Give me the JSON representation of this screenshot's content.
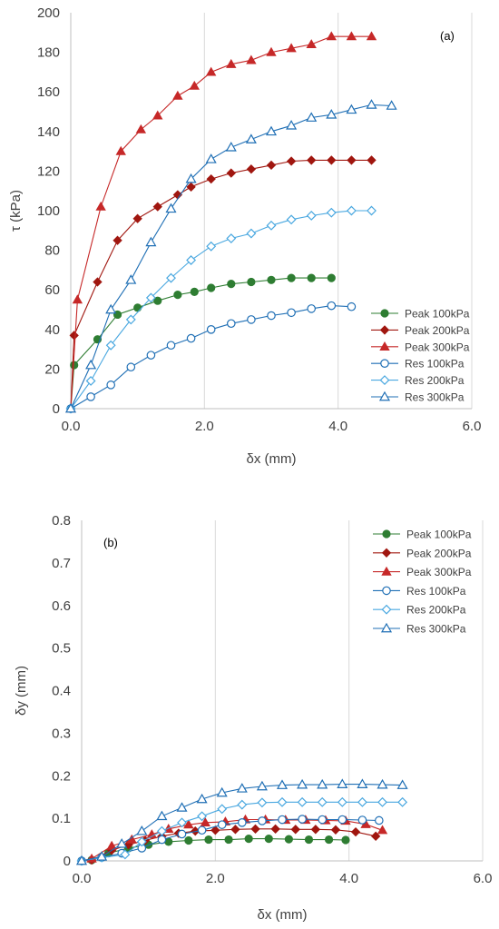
{
  "chart_data": [
    {
      "type": "line",
      "panel_label": "(a)",
      "xlabel": "δx (mm)",
      "ylabel": "τ (kPa)",
      "xlim": [
        0,
        6
      ],
      "ylim": [
        0,
        200
      ],
      "xticks": [
        0,
        2,
        4,
        6
      ],
      "xtick_labels": [
        "0.0",
        "2.0",
        "4.0",
        "6.0"
      ],
      "yticks": [
        0,
        20,
        40,
        60,
        80,
        100,
        120,
        140,
        160,
        180,
        200
      ],
      "ytick_labels": [
        "0",
        "20",
        "40",
        "60",
        "80",
        "100",
        "120",
        "140",
        "160",
        "180",
        "200"
      ],
      "grid": "vertical",
      "legend_position": "bottom-right",
      "series": [
        {
          "name": "Peak 100kPa",
          "color": "#2e7d32",
          "marker": "filled-circle",
          "x": [
            0,
            0.05,
            0.4,
            0.7,
            1.0,
            1.3,
            1.6,
            1.85,
            2.1,
            2.4,
            2.7,
            3.0,
            3.3,
            3.6,
            3.9
          ],
          "y": [
            0,
            22,
            35,
            47.5,
            51,
            54.5,
            57.5,
            59,
            61,
            63,
            64,
            65,
            66,
            66,
            66
          ]
        },
        {
          "name": "Peak 200kPa",
          "color": "#a0160f",
          "marker": "filled-diamond",
          "x": [
            0,
            0.05,
            0.4,
            0.7,
            1.0,
            1.3,
            1.6,
            1.8,
            2.1,
            2.4,
            2.7,
            3.0,
            3.3,
            3.6,
            3.9,
            4.2,
            4.5
          ],
          "y": [
            0,
            37,
            64,
            85,
            96,
            102,
            108,
            112,
            116,
            119,
            121,
            123,
            125,
            125.5,
            125.5,
            125.5,
            125.5
          ]
        },
        {
          "name": "Peak 300kPa",
          "color": "#c62828",
          "marker": "filled-triangle",
          "x": [
            0,
            0.1,
            0.45,
            0.75,
            1.05,
            1.3,
            1.6,
            1.85,
            2.1,
            2.4,
            2.7,
            3.0,
            3.3,
            3.6,
            3.9,
            4.2,
            4.5
          ],
          "y": [
            0,
            55,
            102,
            130,
            141,
            148,
            158,
            163,
            170,
            174,
            176,
            180,
            182,
            184,
            188,
            188,
            188
          ]
        },
        {
          "name": "Res 100kPa",
          "color": "#1f6fb5",
          "marker": "open-circle",
          "x": [
            0,
            0.3,
            0.6,
            0.9,
            1.2,
            1.5,
            1.8,
            2.1,
            2.4,
            2.7,
            3.0,
            3.3,
            3.6,
            3.9,
            4.2
          ],
          "y": [
            0,
            6,
            12,
            21,
            27,
            32,
            35.5,
            40,
            43,
            45,
            47,
            48.5,
            50.5,
            52,
            51.5
          ]
        },
        {
          "name": "Res 200kPa",
          "color": "#4aa8e0",
          "marker": "open-diamond",
          "x": [
            0,
            0.3,
            0.6,
            0.9,
            1.2,
            1.5,
            1.8,
            2.1,
            2.4,
            2.7,
            3.0,
            3.3,
            3.6,
            3.9,
            4.2,
            4.5
          ],
          "y": [
            0,
            14,
            32,
            45,
            56,
            66,
            75,
            82,
            86,
            88.5,
            92.5,
            95.5,
            97.5,
            99,
            100,
            100
          ]
        },
        {
          "name": "Res 300kPa",
          "color": "#1f6fb5",
          "marker": "open-triangle",
          "x": [
            0,
            0.3,
            0.6,
            0.9,
            1.2,
            1.5,
            1.8,
            2.1,
            2.4,
            2.7,
            3.0,
            3.3,
            3.6,
            3.9,
            4.2,
            4.5,
            4.8
          ],
          "y": [
            0,
            22,
            50,
            65,
            84,
            101,
            116,
            126,
            132,
            136,
            140,
            143,
            147,
            148.5,
            151,
            153.5,
            153
          ]
        }
      ]
    },
    {
      "type": "line",
      "panel_label": "(b)",
      "xlabel": "δx (mm)",
      "ylabel": "δy (mm)",
      "xlim": [
        0,
        6
      ],
      "ylim": [
        0,
        0.8
      ],
      "xticks": [
        0,
        2,
        4,
        6
      ],
      "xtick_labels": [
        "0.0",
        "2.0",
        "4.0",
        "6.0"
      ],
      "yticks": [
        0,
        0.1,
        0.2,
        0.3,
        0.4,
        0.5,
        0.6,
        0.7,
        0.8
      ],
      "ytick_labels": [
        "0",
        "0.1",
        "0.2",
        "0.3",
        "0.4",
        "0.5",
        "0.6",
        "0.7",
        "0.8"
      ],
      "grid": "vertical",
      "legend_position": "top-right",
      "series": [
        {
          "name": "Peak 100kPa",
          "color": "#2e7d32",
          "marker": "filled-circle",
          "x": [
            0,
            0.15,
            0.4,
            0.7,
            1.0,
            1.3,
            1.6,
            1.9,
            2.2,
            2.5,
            2.8,
            3.1,
            3.4,
            3.7,
            3.95
          ],
          "y": [
            0,
            0.002,
            0.018,
            0.03,
            0.038,
            0.045,
            0.048,
            0.05,
            0.05,
            0.052,
            0.052,
            0.051,
            0.05,
            0.05,
            0.049
          ]
        },
        {
          "name": "Peak 200kPa",
          "color": "#a0160f",
          "marker": "filled-diamond",
          "x": [
            0,
            0.15,
            0.45,
            0.7,
            0.95,
            1.2,
            1.45,
            1.7,
            2.0,
            2.3,
            2.6,
            2.9,
            3.2,
            3.5,
            3.8,
            4.1,
            4.4
          ],
          "y": [
            0,
            0.002,
            0.025,
            0.038,
            0.048,
            0.058,
            0.065,
            0.07,
            0.072,
            0.074,
            0.075,
            0.075,
            0.074,
            0.074,
            0.073,
            0.068,
            0.058
          ]
        },
        {
          "name": "Peak 300kPa",
          "color": "#c62828",
          "marker": "filled-triangle",
          "x": [
            0,
            0.15,
            0.45,
            0.75,
            1.05,
            1.3,
            1.6,
            1.85,
            2.15,
            2.45,
            2.75,
            3.05,
            3.35,
            3.65,
            3.95,
            4.25,
            4.5
          ],
          "y": [
            0,
            0.005,
            0.035,
            0.05,
            0.062,
            0.075,
            0.085,
            0.09,
            0.092,
            0.097,
            0.097,
            0.096,
            0.096,
            0.095,
            0.094,
            0.086,
            0.072
          ]
        },
        {
          "name": "Res 100kPa",
          "color": "#1f6fb5",
          "marker": "open-circle",
          "x": [
            0,
            0.3,
            0.6,
            0.9,
            1.2,
            1.5,
            1.8,
            2.1,
            2.4,
            2.7,
            3.0,
            3.3,
            3.6,
            3.9,
            4.2,
            4.45
          ],
          "y": [
            0,
            0.008,
            0.018,
            0.03,
            0.05,
            0.063,
            0.072,
            0.085,
            0.09,
            0.094,
            0.097,
            0.098,
            0.097,
            0.097,
            0.096,
            0.095
          ]
        },
        {
          "name": "Res 200kPa",
          "color": "#4aa8e0",
          "marker": "open-diamond",
          "x": [
            0,
            0.3,
            0.65,
            0.9,
            1.2,
            1.5,
            1.8,
            2.1,
            2.4,
            2.7,
            3.0,
            3.3,
            3.6,
            3.9,
            4.2,
            4.5,
            4.8
          ],
          "y": [
            0,
            0.008,
            0.015,
            0.045,
            0.07,
            0.09,
            0.105,
            0.122,
            0.132,
            0.137,
            0.138,
            0.138,
            0.138,
            0.138,
            0.138,
            0.138,
            0.138
          ]
        },
        {
          "name": "Res 300kPa",
          "color": "#1f6fb5",
          "marker": "open-triangle",
          "x": [
            0,
            0.3,
            0.6,
            0.9,
            1.2,
            1.5,
            1.8,
            2.1,
            2.4,
            2.7,
            3.0,
            3.3,
            3.6,
            3.9,
            4.2,
            4.5,
            4.8
          ],
          "y": [
            0,
            0.01,
            0.04,
            0.07,
            0.105,
            0.125,
            0.145,
            0.16,
            0.17,
            0.175,
            0.178,
            0.179,
            0.179,
            0.18,
            0.18,
            0.179,
            0.178
          ]
        }
      ]
    }
  ]
}
